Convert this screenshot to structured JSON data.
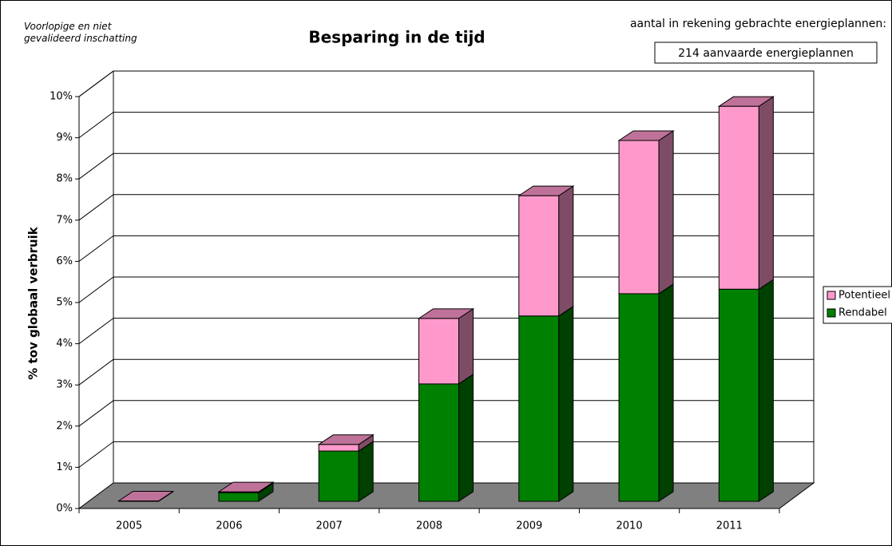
{
  "chart_data": {
    "type": "bar3d_stacked",
    "title": "Besparing in de tijd",
    "note": "Voorlopige en niet gevalideerd inschatting",
    "header_text": "aantal in rekening gebrachte energieplannen:",
    "box_text": "214 aanvaarde energieplannen",
    "y_label": "% tov globaal verbruik",
    "categories": [
      "2005",
      "2006",
      "2007",
      "2008",
      "2009",
      "2010",
      "2011"
    ],
    "series": [
      {
        "name": "Rendabel",
        "color": "#008000",
        "values": [
          0,
          0.21,
          1.22,
          2.85,
          4.5,
          5.04,
          5.15
        ]
      },
      {
        "name": "Potentieel",
        "color": "#ff99cc",
        "values": [
          0.01,
          0.02,
          0.16,
          1.59,
          2.92,
          3.72,
          4.44
        ]
      }
    ],
    "ylim": [
      0,
      10
    ],
    "yticks": [
      {
        "value": 0,
        "label": "0%"
      },
      {
        "value": 1,
        "label": "1%"
      },
      {
        "value": 2,
        "label": "2%"
      },
      {
        "value": 3,
        "label": "3%"
      },
      {
        "value": 4,
        "label": "4%"
      },
      {
        "value": 5,
        "label": "5%"
      },
      {
        "value": 6,
        "label": "6%"
      },
      {
        "value": 7,
        "label": "7%"
      },
      {
        "value": 8,
        "label": "8%"
      },
      {
        "value": 9,
        "label": "9%"
      },
      {
        "value": 10,
        "label": "10%"
      }
    ],
    "grid": true,
    "legend": "right"
  }
}
